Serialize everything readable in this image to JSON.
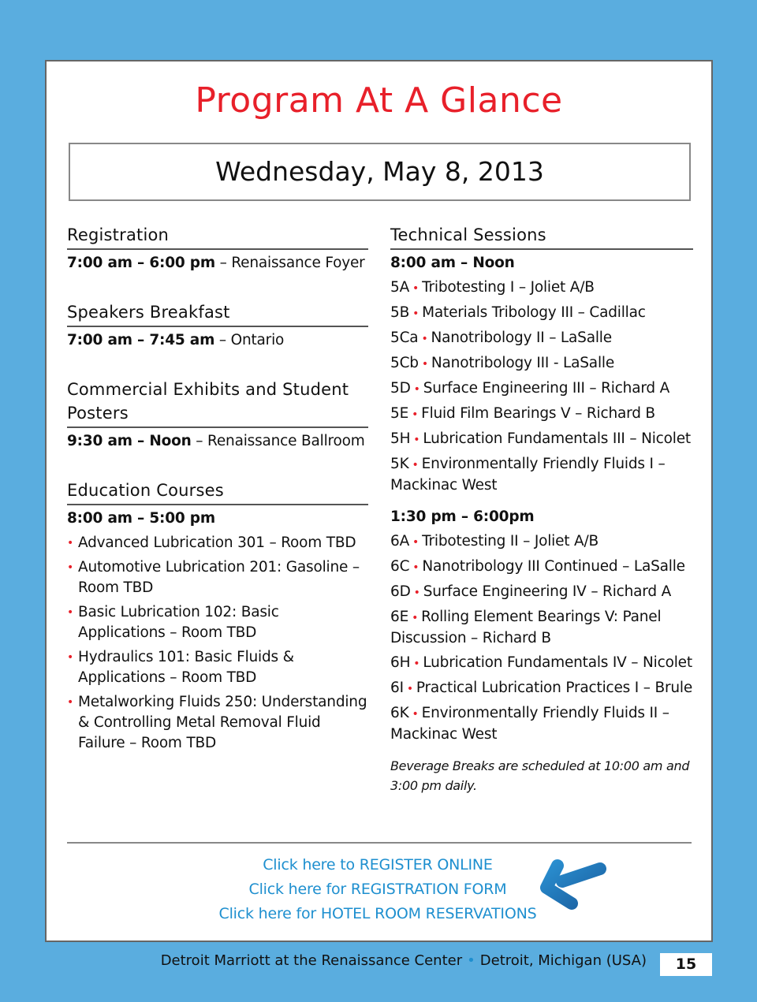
{
  "title": "Program At A Glance",
  "date": "Wednesday, May 8, 2013",
  "left": {
    "registration": {
      "heading": "Registration",
      "time": "7:00 am – 6:00 pm",
      "place": " – Renaissance Foyer"
    },
    "breakfast": {
      "heading": "Speakers Breakfast",
      "time": "7:00 am – 7:45 am",
      "place": " – Ontario"
    },
    "exhibits": {
      "heading": "Commercial Exhibits and Student Posters",
      "time": "9:30 am – Noon",
      "place": " – Renaissance Ballroom"
    },
    "education": {
      "heading": "Education Courses",
      "time": "8:00 am – 5:00 pm",
      "items": [
        "Advanced Lubrication 301 – Room TBD",
        "Automotive Lubrication 201: Gasoline – Room TBD",
        "Basic Lubrication 102: Basic Applications – Room TBD",
        "Hydraulics 101: Basic Fluids & Applications – Room TBD",
        "Metalworking Fluids 250: Understanding & Controlling Metal Removal Fluid Failure – Room TBD"
      ]
    }
  },
  "right": {
    "heading": "Technical Sessions",
    "morning": {
      "time": "8:00 am – Noon",
      "items": [
        {
          "code": "5A",
          "text": "Tribotesting I – Joliet A/B"
        },
        {
          "code": "5B",
          "text": "Materials Tribology III – Cadillac"
        },
        {
          "code": "5Ca",
          "text": "Nanotribology II – LaSalle"
        },
        {
          "code": "5Cb",
          "text": "Nanotribology III - LaSalle"
        },
        {
          "code": "5D",
          "text": "Surface Engineering III – Richard A"
        },
        {
          "code": "5E",
          "text": "Fluid Film Bearings V – Richard B"
        },
        {
          "code": "5H",
          "text": "Lubrication Fundamentals III – Nicolet"
        },
        {
          "code": "5K",
          "text": "Environmentally Friendly Fluids I – Mackinac West"
        }
      ]
    },
    "afternoon": {
      "time": "1:30 pm – 6:00pm",
      "items": [
        {
          "code": "6A",
          "text": "Tribotesting II – Joliet A/B"
        },
        {
          "code": "6C",
          "text": "Nanotribology III Continued – LaSalle"
        },
        {
          "code": "6D",
          "text": "Surface Engineering IV – Richard A"
        },
        {
          "code": "6E",
          "text": "Rolling Element Bearings V: Panel Discussion – Richard B"
        },
        {
          "code": "6H",
          "text": "Lubrication Fundamentals IV – Nicolet"
        },
        {
          "code": "6I",
          "text": "Practical Lubrication Practices I – Brule"
        },
        {
          "code": "6K",
          "text": "Environmentally Friendly Fluids II – Mackinac West"
        }
      ]
    },
    "note": "Beverage Breaks are scheduled at 10:00 am and 3:00 pm daily."
  },
  "links": [
    "Click here to REGISTER ONLINE",
    "Click here for REGISTRATION FORM",
    "Click here for HOTEL ROOM RESERVATIONS"
  ],
  "footer": {
    "venue": "Detroit Marriott at the Renaissance Center",
    "separator": "•",
    "city": "Detroit, Michigan (USA)",
    "page": "15"
  },
  "colors": {
    "accent": "#e8202a",
    "link": "#1e8fcf",
    "background": "#5aaddf"
  },
  "icons": {
    "arrow": "arrow-left-icon",
    "bullet": "bullet-dot"
  }
}
